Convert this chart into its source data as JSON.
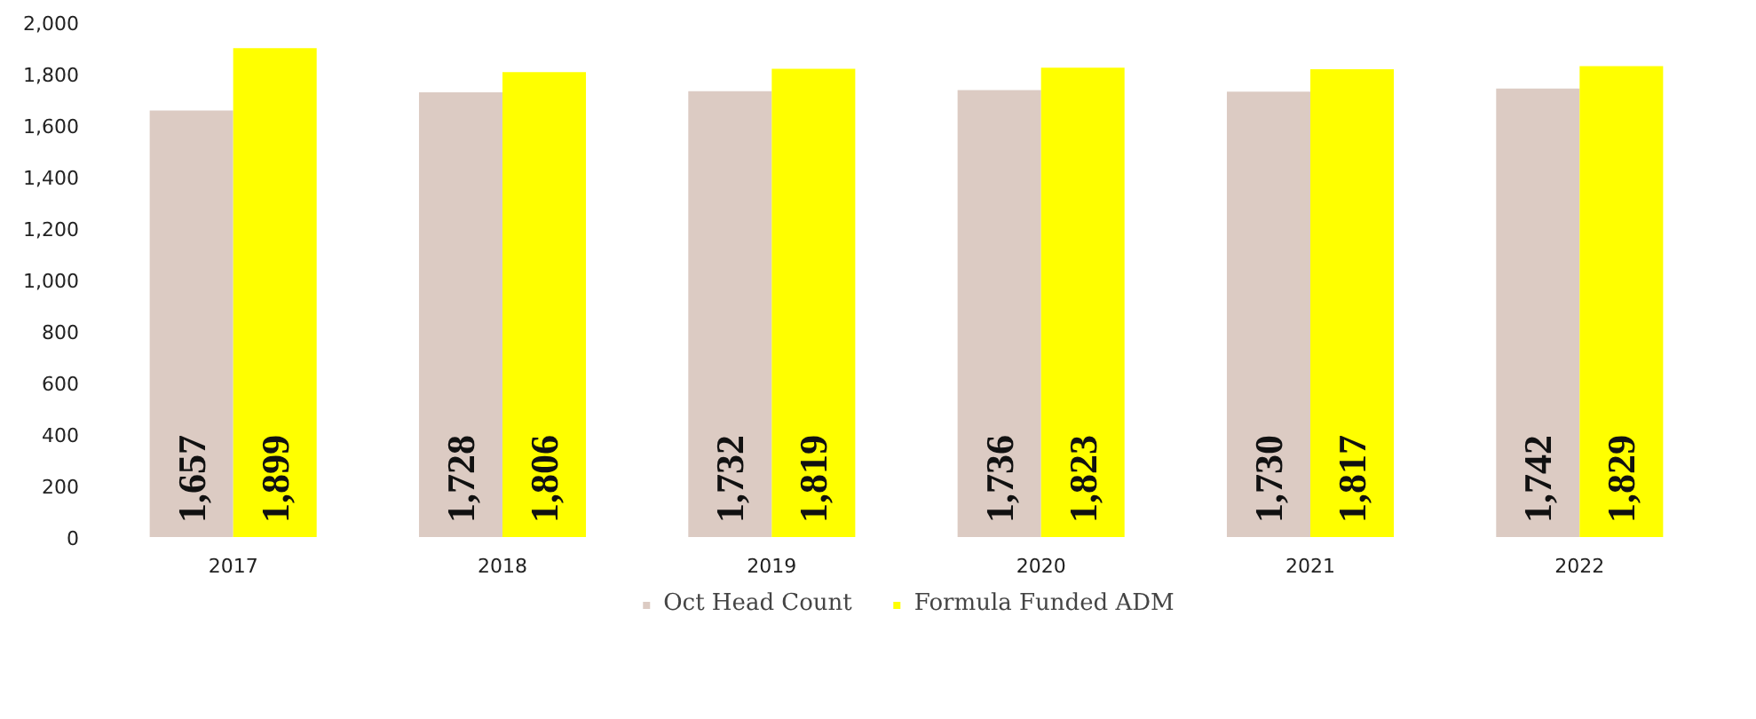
{
  "chart_data": {
    "type": "bar",
    "categories": [
      "2017",
      "2018",
      "2019",
      "2020",
      "2021",
      "2022"
    ],
    "series": [
      {
        "name": "Oct Head Count",
        "color": "#dccbc3",
        "values": [
          1657,
          1728,
          1732,
          1736,
          1730,
          1742
        ],
        "value_labels": [
          "1,657",
          "1,728",
          "1,732",
          "1,736",
          "1,730",
          "1,742"
        ]
      },
      {
        "name": "Formula Funded ADM",
        "color": "#ffff00",
        "values": [
          1899,
          1806,
          1819,
          1823,
          1817,
          1829
        ],
        "value_labels": [
          "1,899",
          "1,806",
          "1,819",
          "1,823",
          "1,817",
          "1,829"
        ]
      }
    ],
    "ylim": [
      0,
      2000
    ],
    "yticks": [
      {
        "value": 0,
        "label": "0"
      },
      {
        "value": 200,
        "label": "200"
      },
      {
        "value": 400,
        "label": "400"
      },
      {
        "value": 600,
        "label": "600"
      },
      {
        "value": 800,
        "label": "800"
      },
      {
        "value": 1000,
        "label": "1,000"
      },
      {
        "value": 1200,
        "label": "1,200"
      },
      {
        "value": 1400,
        "label": "1,400"
      },
      {
        "value": 1600,
        "label": "1,600"
      },
      {
        "value": 1800,
        "label": "1,800"
      },
      {
        "value": 2000,
        "label": "2,000"
      }
    ],
    "grid": false,
    "legend": "bottom"
  }
}
